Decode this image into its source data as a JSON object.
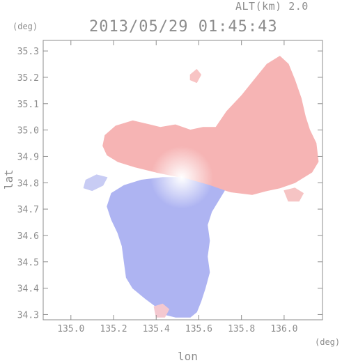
{
  "header": {
    "altitude_label": "ALT(km) 2.0",
    "timestamp": "2013/05/29 01:45:43"
  },
  "chart_data": {
    "type": "heatmap",
    "title": "2013/05/29 01:45:43",
    "subtitle": "ALT(km) 2.0",
    "xlabel": "lon",
    "ylabel": "lat",
    "x_unit": "(deg)",
    "y_unit": "(deg)",
    "xlim": [
      134.87,
      136.18
    ],
    "ylim": [
      34.28,
      35.34
    ],
    "x_ticks": [
      135.0,
      135.2,
      135.4,
      135.6,
      135.8,
      136.0
    ],
    "x_tick_labels": [
      "135.0",
      "135.2",
      "135.4",
      "135.6",
      "135.8",
      "136.0"
    ],
    "y_ticks": [
      34.3,
      34.4,
      34.5,
      34.6,
      34.7,
      34.8,
      34.9,
      35.0,
      35.1,
      35.2,
      35.3
    ],
    "y_tick_labels": [
      "34.3",
      "34.4",
      "34.5",
      "34.6",
      "34.7",
      "34.8",
      "34.9",
      "35.0",
      "35.1",
      "35.2",
      "35.3"
    ],
    "radar_center": [
      135.52,
      34.82
    ],
    "grid": false,
    "colors": {
      "approaching": "#aab0f0",
      "receding": "#f4a8a8",
      "neutral": "#ffffff",
      "frame": "#8c8c8c"
    },
    "regions": [
      {
        "name": "north-receding",
        "color": "#f6b4b4",
        "polygon": [
          [
            135.52,
            34.82
          ],
          [
            135.4,
            34.84
          ],
          [
            135.3,
            34.86
          ],
          [
            135.22,
            34.88
          ],
          [
            135.17,
            34.905
          ],
          [
            135.15,
            34.94
          ],
          [
            135.16,
            34.98
          ],
          [
            135.21,
            35.015
          ],
          [
            135.29,
            35.035
          ],
          [
            135.37,
            35.02
          ],
          [
            135.42,
            35.01
          ],
          [
            135.49,
            35.02
          ],
          [
            135.56,
            35.0
          ],
          [
            135.62,
            35.01
          ],
          [
            135.68,
            35.01
          ],
          [
            135.73,
            35.07
          ],
          [
            135.8,
            35.13
          ],
          [
            135.86,
            35.19
          ],
          [
            135.92,
            35.25
          ],
          [
            135.98,
            35.28
          ],
          [
            136.02,
            35.25
          ],
          [
            136.05,
            35.19
          ],
          [
            136.08,
            35.12
          ],
          [
            136.1,
            35.05
          ],
          [
            136.12,
            35.0
          ],
          [
            136.15,
            34.95
          ],
          [
            136.16,
            34.88
          ],
          [
            136.13,
            34.84
          ],
          [
            136.05,
            34.8
          ],
          [
            135.98,
            34.78
          ],
          [
            135.92,
            34.77
          ],
          [
            135.85,
            34.755
          ],
          [
            135.75,
            34.765
          ],
          [
            135.65,
            34.79
          ]
        ]
      },
      {
        "name": "south-approaching",
        "color": "#aeb4f2",
        "polygon": [
          [
            135.52,
            34.82
          ],
          [
            135.65,
            34.79
          ],
          [
            135.72,
            34.77
          ],
          [
            135.69,
            34.73
          ],
          [
            135.66,
            34.69
          ],
          [
            135.64,
            34.64
          ],
          [
            135.65,
            34.58
          ],
          [
            135.64,
            34.52
          ],
          [
            135.65,
            34.46
          ],
          [
            135.63,
            34.4
          ],
          [
            135.61,
            34.35
          ],
          [
            135.59,
            34.31
          ],
          [
            135.56,
            34.29
          ],
          [
            135.49,
            34.29
          ],
          [
            135.44,
            34.3
          ],
          [
            135.4,
            34.33
          ],
          [
            135.35,
            34.36
          ],
          [
            135.29,
            34.4
          ],
          [
            135.26,
            34.44
          ],
          [
            135.25,
            34.5
          ],
          [
            135.24,
            34.56
          ],
          [
            135.22,
            34.61
          ],
          [
            135.19,
            34.66
          ],
          [
            135.17,
            34.71
          ],
          [
            135.19,
            34.76
          ],
          [
            135.25,
            34.79
          ],
          [
            135.33,
            34.81
          ],
          [
            135.43,
            34.82
          ]
        ]
      },
      {
        "name": "west-approaching",
        "color": "#c8ccf4",
        "polygon": [
          [
            135.07,
            34.81
          ],
          [
            135.12,
            34.83
          ],
          [
            135.17,
            34.82
          ],
          [
            135.15,
            34.79
          ],
          [
            135.1,
            34.77
          ],
          [
            135.06,
            34.78
          ]
        ]
      },
      {
        "name": "northwest-receding",
        "color": "#f8c4c4",
        "polygon": [
          [
            135.56,
            35.21
          ],
          [
            135.59,
            35.23
          ],
          [
            135.61,
            35.21
          ],
          [
            135.59,
            35.18
          ],
          [
            135.56,
            35.19
          ]
        ]
      },
      {
        "name": "east-speckle",
        "color": "#f6c4c4",
        "polygon": [
          [
            136.0,
            34.77
          ],
          [
            136.05,
            34.78
          ],
          [
            136.09,
            34.76
          ],
          [
            136.07,
            34.73
          ],
          [
            136.02,
            34.73
          ]
        ]
      },
      {
        "name": "south-speckle",
        "color": "#f4c8d0",
        "polygon": [
          [
            135.39,
            34.33
          ],
          [
            135.43,
            34.34
          ],
          [
            135.46,
            34.32
          ],
          [
            135.44,
            34.29
          ],
          [
            135.4,
            34.29
          ]
        ]
      }
    ]
  }
}
